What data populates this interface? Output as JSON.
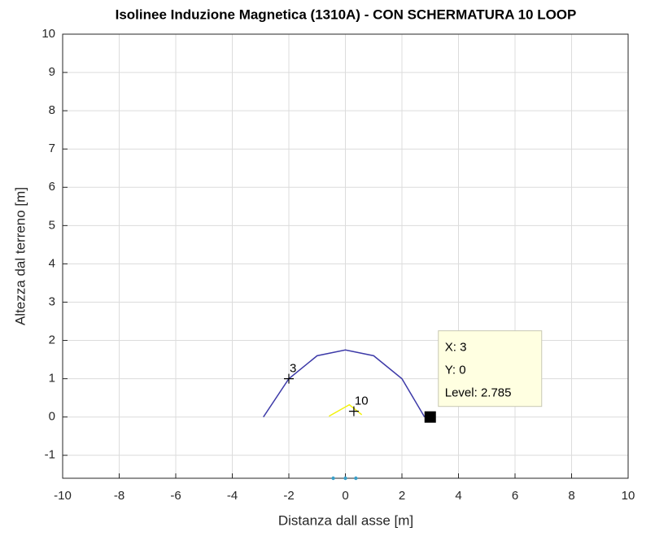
{
  "chart_data": {
    "type": "contour",
    "title": "Isolinee Induzione Magnetica (1310A) - CON SCHERMATURA 10 LOOP",
    "xlabel": "Distanza dall asse [m]",
    "ylabel": "Altezza dal terreno [m]",
    "xlim": [
      -10,
      10
    ],
    "ylim": [
      -1.6,
      10
    ],
    "xticks": [
      -10,
      -8,
      -6,
      -4,
      -2,
      0,
      2,
      4,
      6,
      8,
      10
    ],
    "yticks": [
      -1,
      0,
      1,
      2,
      3,
      4,
      5,
      6,
      7,
      8,
      9,
      10
    ],
    "grid": true,
    "contours": [
      {
        "level": 3,
        "color": "#3d3aa8",
        "x": [
          -2.9,
          -2,
          -1,
          0,
          1,
          2,
          2.8
        ],
        "y": [
          0,
          1,
          1.6,
          1.75,
          1.6,
          1,
          0
        ],
        "label_x": -2,
        "label_y": 1
      },
      {
        "level": 10,
        "color": "#f2f20e",
        "x": [
          -0.58,
          -0.2,
          0.14,
          0.58
        ],
        "y": [
          0.02,
          0.18,
          0.32,
          0.06
        ],
        "label_x": 0.3,
        "label_y": 0.15
      }
    ],
    "points": {
      "color": "#3a9fc8",
      "x": [
        -0.43,
        0,
        0.37
      ],
      "y": [
        -1.6,
        -1.6,
        -1.6
      ]
    },
    "datatip": {
      "x": 3,
      "y": 0,
      "labels": [
        "X: 3",
        "Y: 0",
        "Level: 2.785"
      ]
    }
  }
}
